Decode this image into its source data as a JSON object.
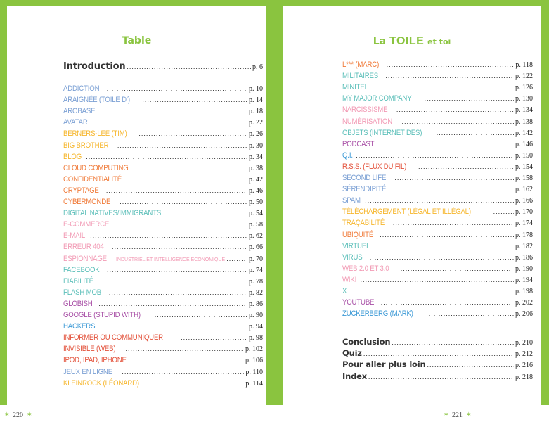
{
  "left": {
    "title": "Table",
    "intro": {
      "label": "Introduction",
      "page": "p. 6"
    },
    "entries": [
      {
        "label": "Addiction",
        "page": "p. 10",
        "color": "#7ba0d4"
      },
      {
        "label": "Araignée (toile d’)",
        "page": "p. 14",
        "color": "#7ba0d4"
      },
      {
        "label": "Arobase",
        "page": "p. 18",
        "color": "#7ba0d4"
      },
      {
        "label": "Avatar",
        "page": "p. 22",
        "color": "#7ba0d4"
      },
      {
        "label": "Berners-Lee (Tim)",
        "page": "p. 26",
        "color": "#f6b62c"
      },
      {
        "label": "Big Brother",
        "page": "p. 30",
        "color": "#f6b62c"
      },
      {
        "label": "Blog",
        "page": "p. 34",
        "color": "#f6b62c"
      },
      {
        "label": "Cloud computing",
        "page": "p. 38",
        "color": "#f07b3a"
      },
      {
        "label": "Confidentialité",
        "page": "p. 42",
        "color": "#f07b3a"
      },
      {
        "label": "Cryptage",
        "page": "p. 46",
        "color": "#f07b3a"
      },
      {
        "label": "Cybermonde",
        "page": "p. 50",
        "color": "#f07b3a"
      },
      {
        "label": "Digital natives/immigrants",
        "page": "p. 54",
        "color": "#5cbfb9"
      },
      {
        "label": "E-commerce",
        "page": "p. 58",
        "color": "#f29bb5"
      },
      {
        "label": "E-mail",
        "page": "p. 62",
        "color": "#f29bb5"
      },
      {
        "label": "Erreur 404",
        "page": "p. 66",
        "color": "#f29bb5"
      },
      {
        "label": "Espionnage",
        "sub": "industriel et intelligence économique",
        "page": "p. 70",
        "color": "#f29bb5"
      },
      {
        "label": "Facebook",
        "page": "p. 74",
        "color": "#5cbfb9"
      },
      {
        "label": "Fiabilité",
        "page": "p. 78",
        "color": "#5cbfb9"
      },
      {
        "label": "Flash mob",
        "page": "p. 82",
        "color": "#5cbfb9"
      },
      {
        "label": "Globish",
        "page": "p. 86",
        "color": "#a84fa6"
      },
      {
        "label": "Google (stupid with)",
        "page": "p. 90",
        "color": "#a84fa6"
      },
      {
        "label": "Hackers",
        "page": "p. 94",
        "color": "#3b99d6"
      },
      {
        "label": "Informer ou communiquer",
        "page": "p. 98",
        "color": "#e3523b"
      },
      {
        "label": "Invisible (web)",
        "page": "p. 102",
        "color": "#e3523b"
      },
      {
        "label": "iPod, iPad, iPhone",
        "page": "p. 106",
        "color": "#e3523b"
      },
      {
        "label": "Jeux en ligne",
        "page": "p. 110",
        "color": "#7ba0d4"
      },
      {
        "label": "Kleinrock (Léonard)",
        "page": "p. 114",
        "color": "#f6b62c"
      }
    ],
    "page_number": "220"
  },
  "right": {
    "title_a": "La",
    "title_b": "TOILE",
    "title_c": "et toi",
    "entries": [
      {
        "label": "L*** (Marc)",
        "page": "p. 118",
        "color": "#f07b3a"
      },
      {
        "label": "Militaires",
        "page": "p. 122",
        "color": "#5cbfb9"
      },
      {
        "label": "Minitel",
        "page": "p. 126",
        "color": "#5cbfb9"
      },
      {
        "label": "My Major Company",
        "page": "p. 130",
        "color": "#5cbfb9"
      },
      {
        "label": "Narcissisme",
        "page": "p. 134",
        "color": "#f29bb5"
      },
      {
        "label": "Numérisation",
        "page": "p. 138",
        "color": "#f29bb5"
      },
      {
        "label": "Objets (internet des)",
        "page": "p. 142",
        "color": "#5cbfb9"
      },
      {
        "label": "Podcast",
        "page": "p. 146",
        "color": "#a84fa6"
      },
      {
        "label": "Q.I.",
        "page": "p. 150",
        "color": "#3b99d6"
      },
      {
        "label": "R.S.S. (flux du fil)",
        "page": "p. 154",
        "color": "#e3523b"
      },
      {
        "label": "Second Life",
        "page": "p. 158",
        "color": "#7ba0d4"
      },
      {
        "label": "Sérendipité",
        "page": "p. 162",
        "color": "#7ba0d4"
      },
      {
        "label": "Spam",
        "page": "p. 166",
        "color": "#7ba0d4"
      },
      {
        "label": "Téléchargement (légal et illégal)",
        "page": "p. 170",
        "color": "#f6b62c"
      },
      {
        "label": "Traçabilité",
        "page": "p. 174",
        "color": "#f6b62c"
      },
      {
        "label": "Ubiquité",
        "page": "p. 178",
        "color": "#f07b3a"
      },
      {
        "label": "Virtuel",
        "page": "p. 182",
        "color": "#5cbfb9"
      },
      {
        "label": "Virus",
        "page": "p. 186",
        "color": "#5cbfb9"
      },
      {
        "label": "Web 2.0 et 3.0",
        "page": "p. 190",
        "color": "#f29bb5"
      },
      {
        "label": "Wiki",
        "page": "p. 194",
        "color": "#f29bb5"
      },
      {
        "label": "X",
        "page": "p. 198",
        "color": "#5cbfb9"
      },
      {
        "label": "YouTube",
        "page": "p. 202",
        "color": "#a84fa6"
      },
      {
        "label": "Zuckerberg (Mark)",
        "page": "p. 206",
        "color": "#3b99d6"
      }
    ],
    "back": [
      {
        "label": "Conclusion",
        "page": "p. 210"
      },
      {
        "label": "Quiz",
        "page": "p. 212"
      },
      {
        "label": "Pour aller plus loin",
        "page": "p. 216"
      },
      {
        "label": "Index",
        "page": "p. 218"
      }
    ],
    "page_number": "221"
  }
}
